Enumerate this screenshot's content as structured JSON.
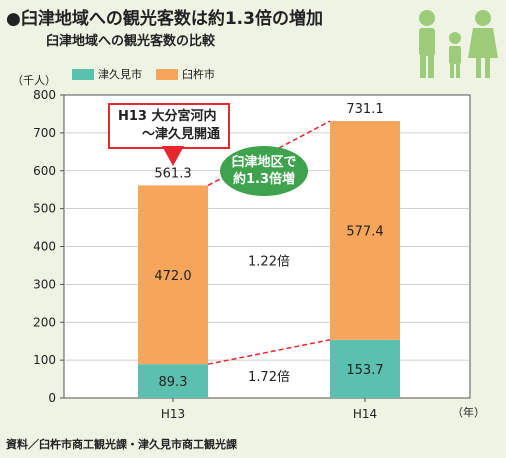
{
  "header": {
    "title": "●臼津地域への観光客数は約1.3倍の増加",
    "subtitle": "臼津地域への観光客数の比較"
  },
  "colors": {
    "tsukumi": "#5cc0b0",
    "usuki": "#f7a55a",
    "accent_red": "#e8262d",
    "bubble_green": "#3fa34d",
    "family_icon": "#9ccc7a"
  },
  "annotations": {
    "callout_line1": "H13 大分宮河内",
    "callout_line2": "～津久見開通",
    "bubble_line1": "臼津地区で",
    "bubble_line2": "約1.3倍増",
    "ratio_top": "1.22倍",
    "ratio_bottom": "1.72倍"
  },
  "source": "資料／臼杵市商工観光課・津久見市商工観光課",
  "chart_data": {
    "type": "bar",
    "stacked": true,
    "categories": [
      "H13",
      "H14"
    ],
    "series": [
      {
        "name": "津久見市",
        "values": [
          89.3,
          153.7
        ],
        "color": "#5cc0b0"
      },
      {
        "name": "臼杵市",
        "values": [
          472.0,
          577.4
        ],
        "color": "#f7a55a"
      }
    ],
    "totals": [
      "561.3",
      "731.1"
    ],
    "segment_labels": {
      "津久見市": [
        "89.3",
        "153.7"
      ],
      "臼杵市": [
        "472.0",
        "577.4"
      ]
    },
    "ylim": [
      0,
      800
    ],
    "yticks": [
      0,
      100,
      200,
      300,
      400,
      500,
      600,
      700,
      800
    ],
    "ylabel": "（千人）",
    "xunit": "（年）",
    "legend_position": "top-left",
    "grid": true
  }
}
